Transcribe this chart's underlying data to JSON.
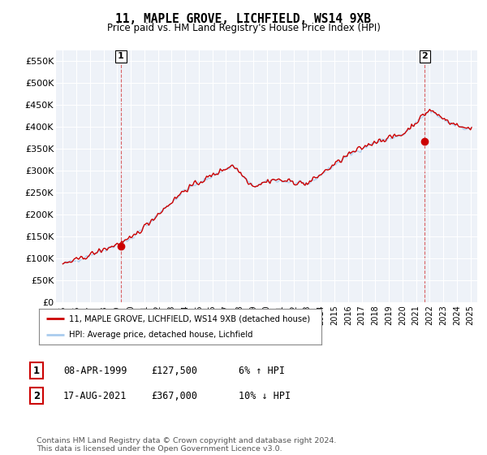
{
  "title": "11, MAPLE GROVE, LICHFIELD, WS14 9XB",
  "subtitle": "Price paid vs. HM Land Registry's House Price Index (HPI)",
  "xlim_start": 1994.5,
  "xlim_end": 2025.5,
  "ylim_min": 0,
  "ylim_max": 575000,
  "yticks": [
    0,
    50000,
    100000,
    150000,
    200000,
    250000,
    300000,
    350000,
    400000,
    450000,
    500000,
    550000
  ],
  "ytick_labels": [
    "£0",
    "£50K",
    "£100K",
    "£150K",
    "£200K",
    "£250K",
    "£300K",
    "£350K",
    "£400K",
    "£450K",
    "£500K",
    "£550K"
  ],
  "xticks": [
    1995,
    1996,
    1997,
    1998,
    1999,
    2000,
    2001,
    2002,
    2003,
    2004,
    2005,
    2006,
    2007,
    2008,
    2009,
    2010,
    2011,
    2012,
    2013,
    2014,
    2015,
    2016,
    2017,
    2018,
    2019,
    2020,
    2021,
    2022,
    2023,
    2024,
    2025
  ],
  "sale1_x": 1999.27,
  "sale1_y": 127500,
  "sale2_x": 2021.63,
  "sale2_y": 367000,
  "red_color": "#cc0000",
  "blue_color": "#aaccee",
  "legend_label1": "11, MAPLE GROVE, LICHFIELD, WS14 9XB (detached house)",
  "legend_label2": "HPI: Average price, detached house, Lichfield",
  "table_rows": [
    {
      "num": "1",
      "date": "08-APR-1999",
      "price": "£127,500",
      "hpi": "6% ↑ HPI"
    },
    {
      "num": "2",
      "date": "17-AUG-2021",
      "price": "£367,000",
      "hpi": "10% ↓ HPI"
    }
  ],
  "footer": "Contains HM Land Registry data © Crown copyright and database right 2024.\nThis data is licensed under the Open Government Licence v3.0.",
  "background_color": "#eef2f8"
}
